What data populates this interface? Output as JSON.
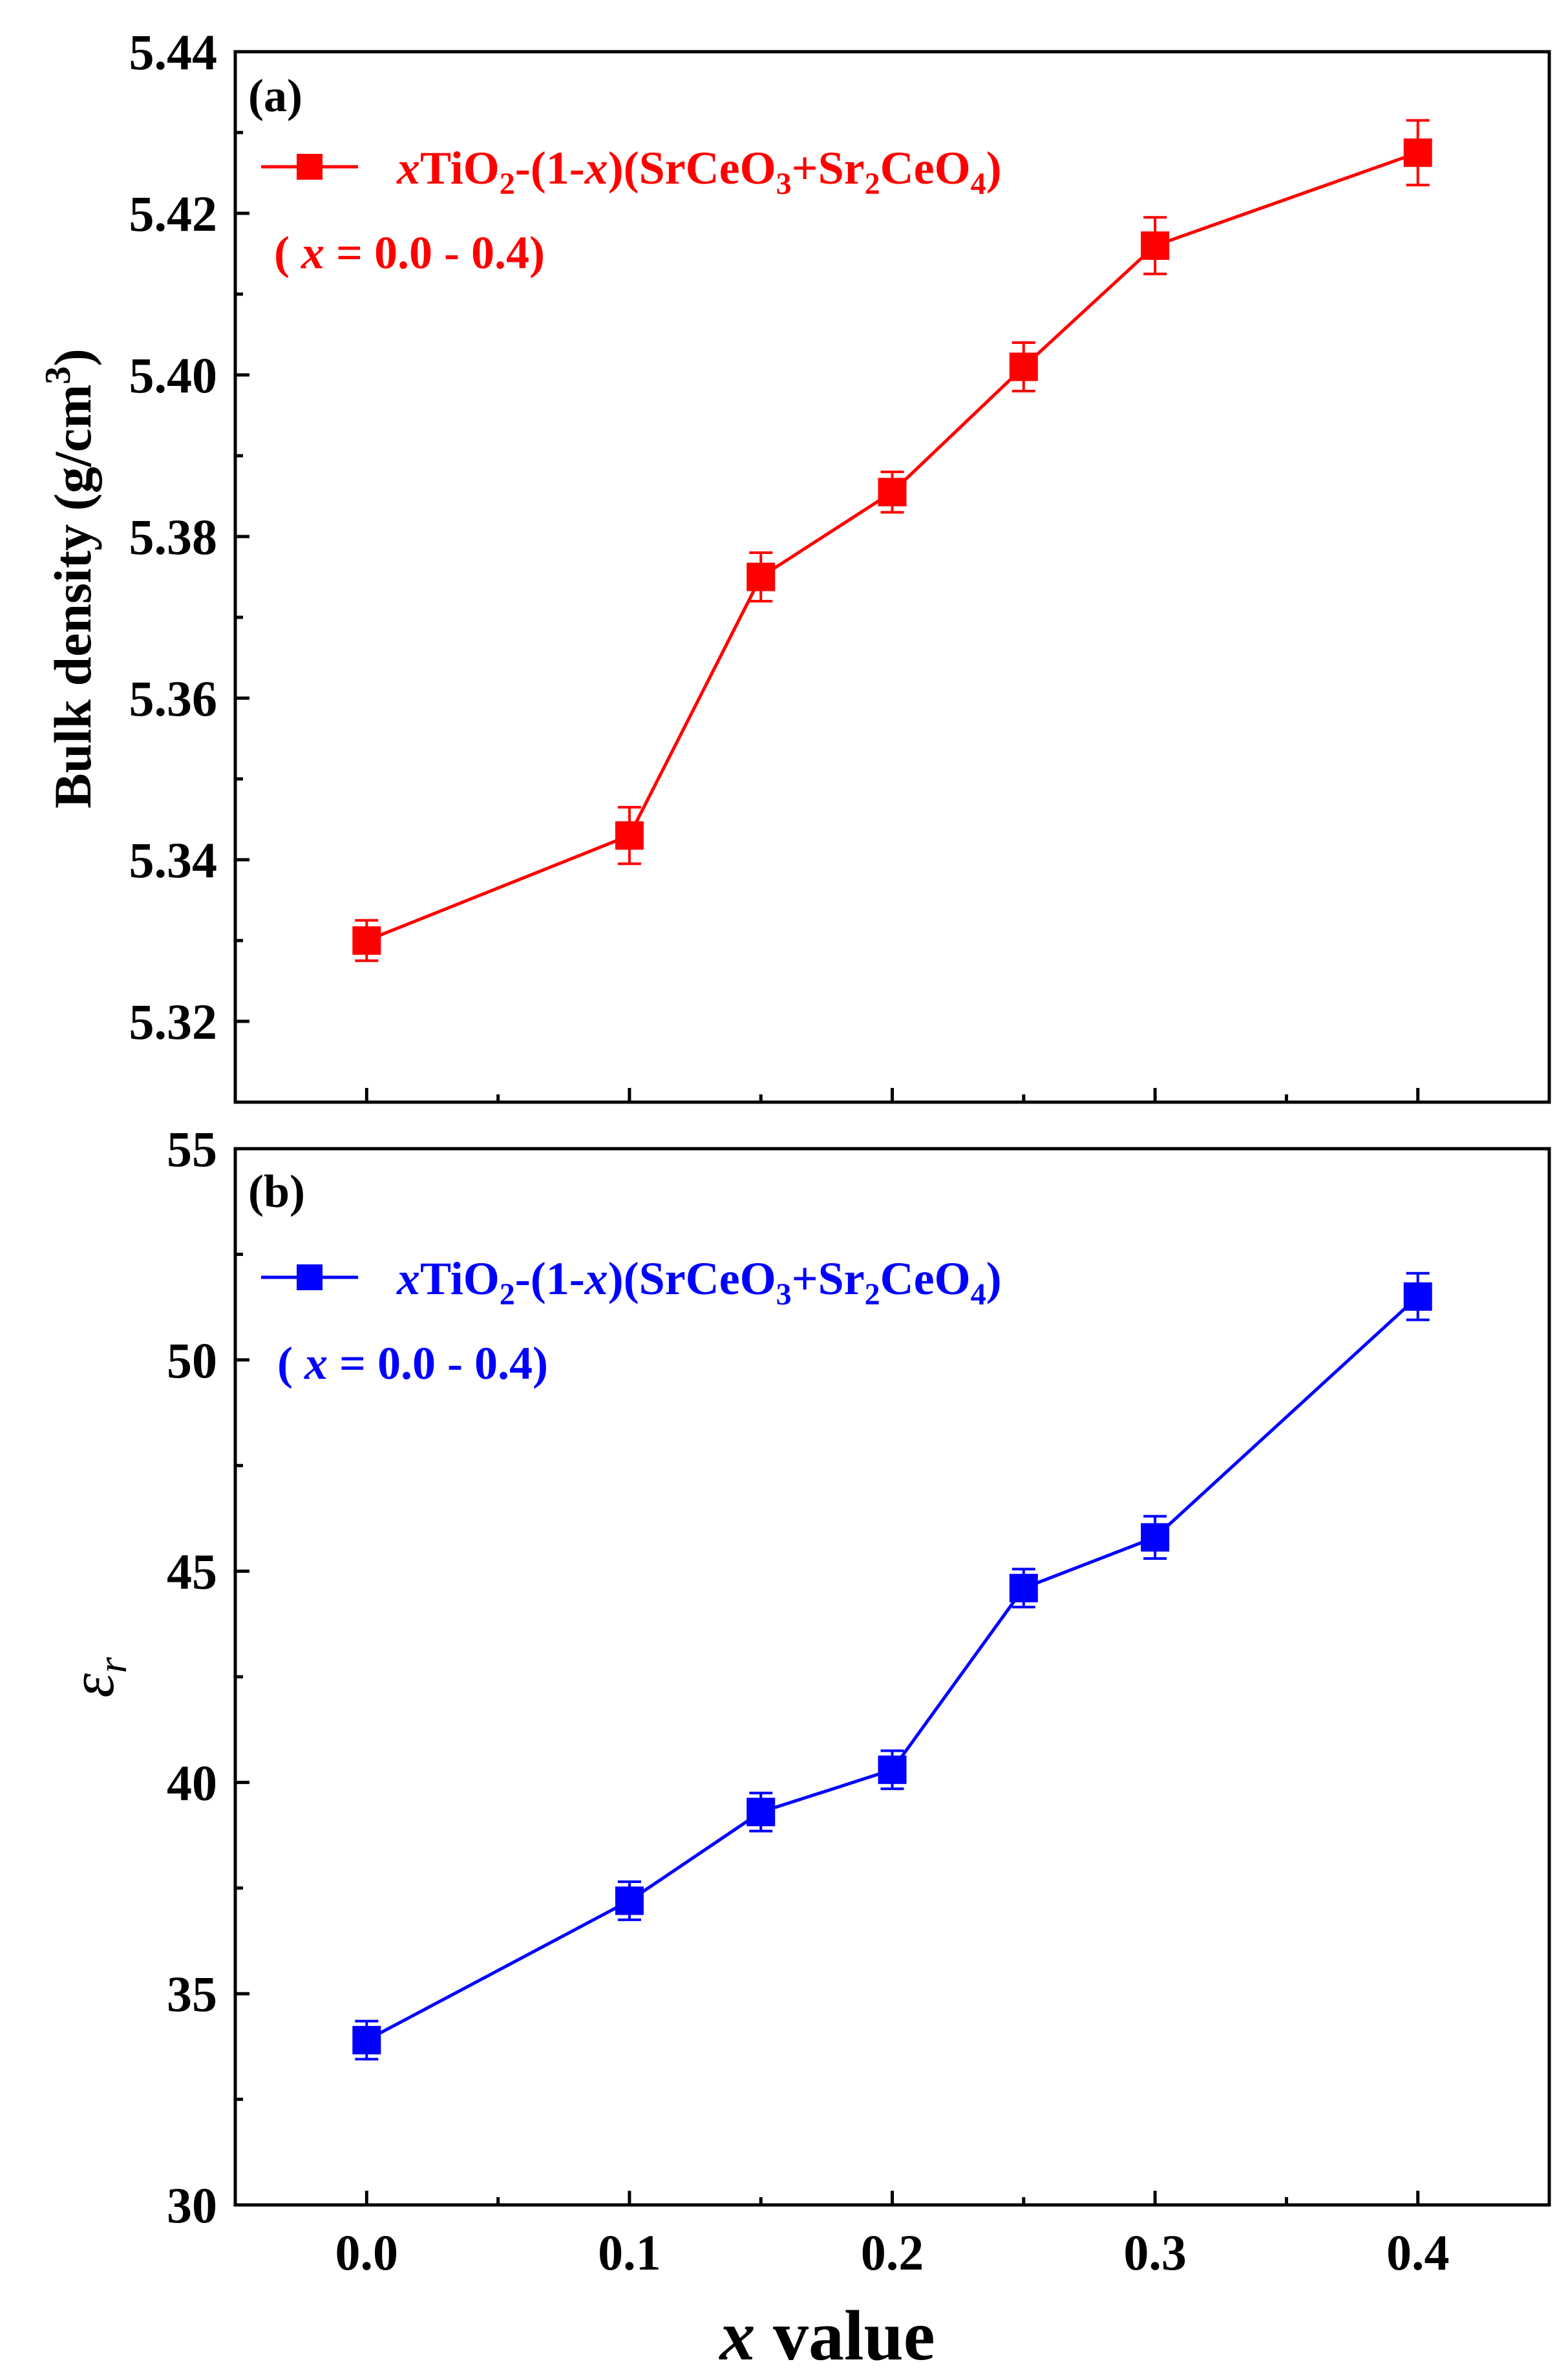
{
  "chart_data": [
    {
      "type": "line",
      "panel_label": "(a)",
      "color": "#ff0000",
      "ylabel": "Bulk density (g/cm",
      "ylabel_sup": "3",
      "ylabel_close": ")",
      "ylim": [
        5.31,
        5.44
      ],
      "y_ticks": [
        5.32,
        5.34,
        5.36,
        5.38,
        5.4,
        5.42,
        5.44
      ],
      "y_tick_labels": [
        "5.32",
        "5.34",
        "5.36",
        "5.38",
        "5.40",
        "5.42",
        "5.44"
      ],
      "x": [
        0.0,
        0.1,
        0.15,
        0.2,
        0.25,
        0.3,
        0.4
      ],
      "values": [
        5.33,
        5.343,
        5.375,
        5.3855,
        5.401,
        5.416,
        5.4275
      ],
      "errors": [
        0.0025,
        0.0035,
        0.003,
        0.0025,
        0.003,
        0.0035,
        0.004
      ],
      "legend": {
        "x_italic": "x",
        "part1": "TiO",
        "sub1": "2",
        "part2": "-(1-",
        "x_italic2": "x",
        "part3": ")(SrCeO",
        "sub2": "3",
        "part4": "+Sr",
        "sub3": "2",
        "part5": "CeO",
        "sub4": "4",
        "part6": ")",
        "range_open": "( ",
        "range_x": "x",
        "range_rest": " = 0.0 - 0.4)"
      }
    },
    {
      "type": "line",
      "panel_label": "(b)",
      "color": "#0000ff",
      "ylabel": "ε",
      "ylabel_sub": "r",
      "ylim": [
        30,
        55
      ],
      "y_ticks": [
        30,
        35,
        40,
        45,
        50,
        55
      ],
      "y_tick_labels": [
        "30",
        "35",
        "40",
        "45",
        "50",
        "55"
      ],
      "x": [
        0.0,
        0.1,
        0.15,
        0.2,
        0.25,
        0.3,
        0.4
      ],
      "values": [
        33.9,
        37.2,
        39.3,
        40.3,
        44.6,
        45.8,
        51.5
      ],
      "errors": [
        0.45,
        0.45,
        0.45,
        0.45,
        0.45,
        0.5,
        0.55
      ],
      "legend": {
        "x_italic": "x",
        "part1": "TiO",
        "sub1": "2",
        "part2": "-(1-",
        "x_italic2": "x",
        "part3": ")(SrCeO",
        "sub2": "3",
        "part4": "+Sr",
        "sub3": "2",
        "part5": "CeO",
        "sub4": "4",
        "part6": ")",
        "range_open": "( ",
        "range_x": "x",
        "range_rest": " = 0.0 - 0.4)"
      }
    }
  ],
  "x_axis": {
    "xlim": [
      -0.05,
      0.45
    ],
    "ticks": [
      0.0,
      0.1,
      0.2,
      0.3,
      0.4
    ],
    "tick_labels": [
      "0.0",
      "0.1",
      "0.2",
      "0.3",
      "0.4"
    ],
    "label_italic": "x",
    "label_rest": " value"
  }
}
